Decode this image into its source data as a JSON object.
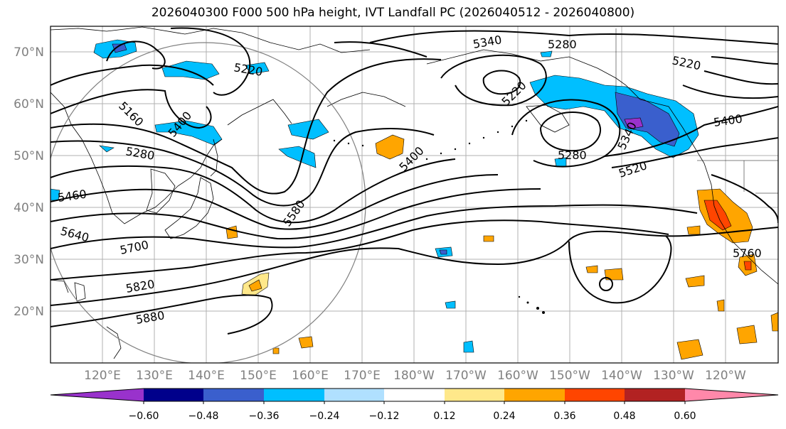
{
  "title": "2026040300 F000 500 hPa height, IVT Landfall PC (2026040512 - 2026040800)",
  "map": {
    "lat_labels": [
      "70°N",
      "60°N",
      "50°N",
      "40°N",
      "30°N",
      "20°N"
    ],
    "lat_values": [
      70,
      60,
      50,
      40,
      30,
      20
    ],
    "lon_labels": [
      "120°E",
      "130°E",
      "140°E",
      "150°E",
      "160°E",
      "170°E",
      "180°W",
      "170°W",
      "160°W",
      "150°W",
      "140°W",
      "130°W",
      "120°W"
    ],
    "contour_labels": [
      "5340",
      "5280",
      "5220",
      "5220",
      "5220",
      "5160",
      "5280",
      "5400",
      "5400",
      "5280",
      "5340",
      "5400",
      "5520",
      "5460",
      "5580",
      "5640",
      "5700",
      "5760",
      "5820",
      "5880"
    ],
    "contour_color": "#000000",
    "grid_color": "#b0b0b0"
  },
  "colorbar": {
    "colors": [
      "#9932cc",
      "#00008b",
      "#3a5fcd",
      "#00bfff",
      "#b0e0ff",
      "#ffffff",
      "#ffe88a",
      "#ffa500",
      "#ff4500",
      "#b22222",
      "#ff88aa"
    ],
    "tick_labels": [
      "−0.60",
      "−0.48",
      "−0.36",
      "−0.24",
      "−0.12",
      "0.12",
      "0.24",
      "0.36",
      "0.48",
      "0.60"
    ]
  }
}
